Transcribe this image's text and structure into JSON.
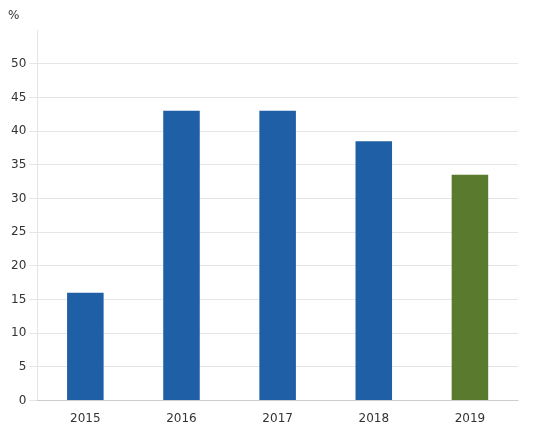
{
  "chart_data": {
    "type": "bar",
    "categories": [
      "2015",
      "2016",
      "2017",
      "2018",
      "2019"
    ],
    "values": [
      16.0,
      43.0,
      43.0,
      38.5,
      33.5
    ],
    "colors": [
      "#1f5fa6",
      "#1f5fa6",
      "#1f5fa6",
      "#1f5fa6",
      "#5a7a2e"
    ],
    "ylabel": "%",
    "ylim": [
      0,
      55
    ],
    "yticks": [
      0,
      5,
      10,
      15,
      20,
      25,
      30,
      35,
      40,
      45,
      50
    ],
    "grid": true
  }
}
